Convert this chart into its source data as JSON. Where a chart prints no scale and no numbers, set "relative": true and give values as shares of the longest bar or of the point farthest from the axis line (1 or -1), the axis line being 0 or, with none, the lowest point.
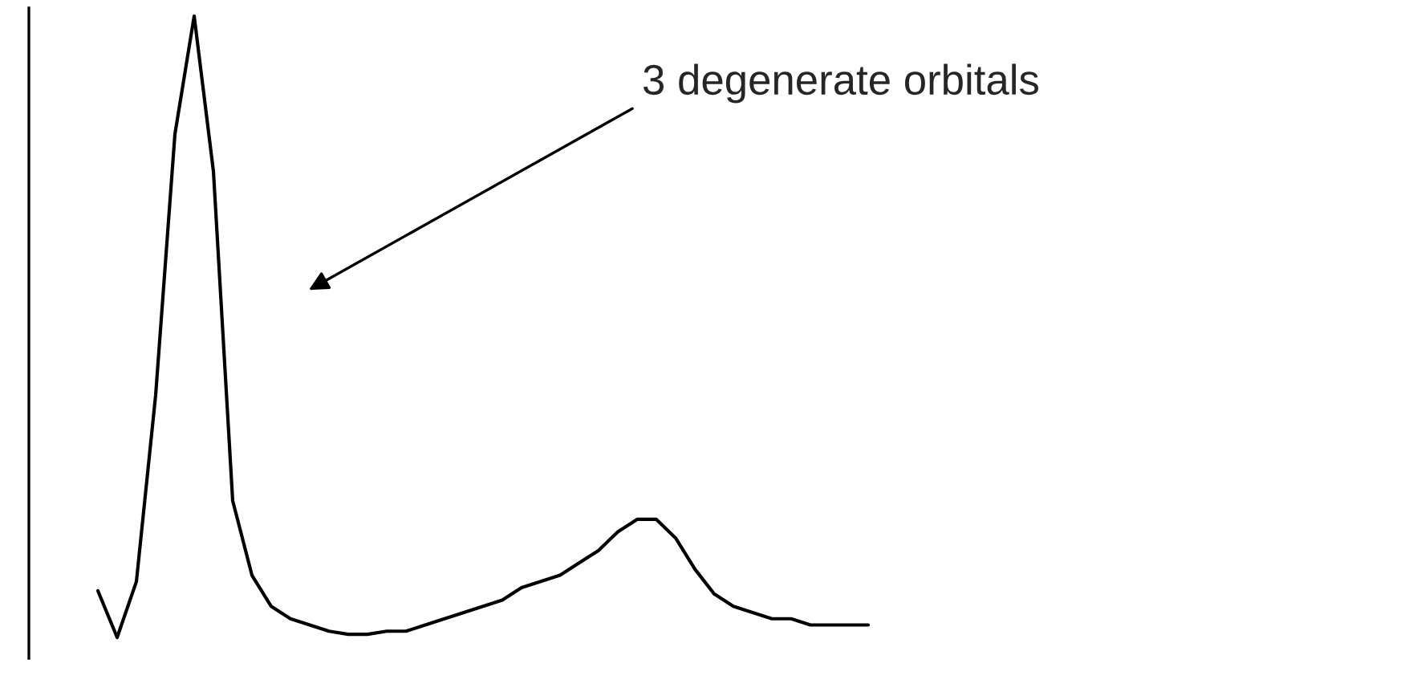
{
  "chart_data": {
    "type": "line",
    "relative": true,
    "legend": false,
    "categories": [
      null,
      null,
      null,
      null,
      null,
      null,
      null,
      null,
      null,
      null,
      null,
      null,
      null,
      null,
      null,
      null,
      null,
      null,
      null,
      null,
      null,
      null,
      null,
      null,
      null,
      null,
      null,
      null,
      null,
      null,
      null,
      null,
      null,
      null,
      null,
      null,
      null,
      null,
      null,
      null,
      null
    ],
    "series": [
      {
        "color": "#000000",
        "values": [
          0.075,
          0,
          0.09,
          0.39,
          0.81,
          1,
          0.75,
          0.22,
          0.1,
          0.05,
          0.03,
          0.02,
          0.01,
          0.005,
          0.005,
          0.01,
          0.01,
          0.02,
          0.03,
          0.04,
          0.05,
          0.06,
          0.08,
          0.09,
          0.1,
          0.12,
          0.14,
          0.17,
          0.19,
          0.19,
          0.16,
          0.11,
          0.07,
          0.05,
          0.04,
          0.03,
          0.03,
          0.02,
          0.02,
          0.02,
          0.02
        ]
      }
    ],
    "annotations": [
      "3 degenerate orbitals"
    ]
  }
}
